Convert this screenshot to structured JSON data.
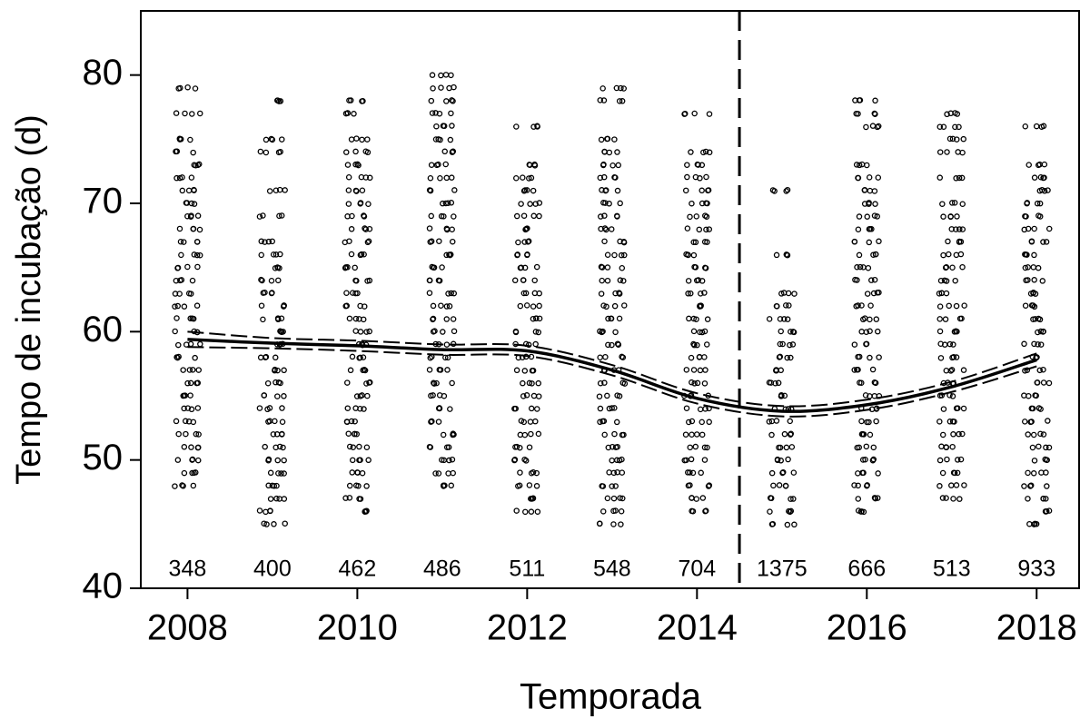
{
  "chart_data": {
    "type": "scatter",
    "x_label": "Temporada",
    "y_label": "Tempo de incubação (d)",
    "xlim": [
      2007.45,
      2018.5
    ],
    "ylim": [
      40,
      85
    ],
    "xticks": [
      2008,
      2010,
      2012,
      2014,
      2016,
      2018
    ],
    "yticks": [
      40,
      50,
      60,
      70,
      80
    ],
    "color": "#000000",
    "x": [
      2008,
      2009,
      2010,
      2011,
      2012,
      2013,
      2014,
      2015,
      2016,
      2017,
      2018
    ],
    "counts": [
      348,
      400,
      462,
      486,
      511,
      548,
      704,
      1375,
      666,
      513,
      933
    ],
    "values": [
      [
        48,
        49,
        50,
        51,
        52,
        53,
        54,
        55,
        56,
        57,
        58,
        59,
        60,
        61,
        62,
        63,
        64,
        65,
        66,
        67,
        68,
        69,
        70,
        71,
        72,
        73,
        74,
        75,
        77,
        79
      ],
      [
        45,
        46,
        47,
        48,
        49,
        50,
        51,
        52,
        53,
        54,
        55,
        56,
        57,
        58,
        59,
        60,
        61,
        62,
        63,
        64,
        65,
        66,
        67,
        69,
        71,
        74,
        75,
        78
      ],
      [
        46,
        47,
        48,
        49,
        50,
        51,
        52,
        53,
        54,
        55,
        56,
        57,
        58,
        59,
        60,
        61,
        62,
        63,
        64,
        65,
        66,
        67,
        68,
        69,
        70,
        71,
        72,
        73,
        74,
        75,
        77,
        78
      ],
      [
        48,
        49,
        50,
        51,
        52,
        53,
        54,
        55,
        56,
        57,
        58,
        59,
        60,
        61,
        62,
        63,
        64,
        65,
        66,
        67,
        68,
        69,
        70,
        71,
        72,
        73,
        74,
        75,
        76,
        77,
        78,
        79,
        80
      ],
      [
        46,
        47,
        48,
        49,
        50,
        51,
        52,
        53,
        54,
        55,
        56,
        57,
        58,
        59,
        60,
        61,
        62,
        63,
        64,
        65,
        66,
        67,
        68,
        69,
        70,
        71,
        72,
        73,
        76
      ],
      [
        45,
        46,
        47,
        48,
        49,
        50,
        51,
        52,
        53,
        54,
        55,
        56,
        57,
        58,
        59,
        60,
        61,
        62,
        63,
        64,
        65,
        66,
        67,
        68,
        69,
        70,
        71,
        72,
        73,
        74,
        75,
        78,
        79
      ],
      [
        46,
        47,
        48,
        49,
        50,
        51,
        52,
        53,
        54,
        55,
        56,
        57,
        58,
        59,
        60,
        61,
        62,
        63,
        64,
        65,
        66,
        67,
        68,
        69,
        70,
        71,
        72,
        73,
        74,
        77
      ],
      [
        45,
        46,
        47,
        48,
        49,
        50,
        51,
        52,
        53,
        54,
        55,
        56,
        57,
        58,
        59,
        60,
        61,
        62,
        63,
        66,
        71
      ],
      [
        46,
        47,
        48,
        49,
        50,
        51,
        52,
        53,
        54,
        55,
        56,
        57,
        58,
        59,
        60,
        61,
        62,
        63,
        64,
        65,
        66,
        67,
        68,
        69,
        70,
        71,
        72,
        73,
        76,
        77,
        78
      ],
      [
        47,
        48,
        49,
        50,
        51,
        52,
        53,
        54,
        55,
        56,
        57,
        58,
        59,
        60,
        61,
        62,
        63,
        64,
        65,
        66,
        67,
        68,
        69,
        70,
        72,
        74,
        75,
        76,
        77
      ],
      [
        45,
        46,
        47,
        48,
        49,
        50,
        51,
        52,
        53,
        54,
        55,
        56,
        57,
        58,
        59,
        60,
        61,
        62,
        63,
        64,
        65,
        66,
        67,
        68,
        69,
        70,
        71,
        72,
        73,
        76
      ]
    ],
    "fit": {
      "x": [
        2008,
        2009,
        2010,
        2011,
        2012,
        2013,
        2014,
        2015,
        2016,
        2017,
        2018
      ],
      "values": [
        59.4,
        59.1,
        58.9,
        58.6,
        58.5,
        57.0,
        54.8,
        53.8,
        54.3,
        55.7,
        57.8
      ],
      "lower": [
        58.8,
        58.7,
        58.5,
        58.2,
        58.1,
        56.6,
        54.4,
        53.4,
        53.9,
        55.3,
        57.3
      ],
      "upper": [
        60.0,
        59.5,
        59.3,
        59.0,
        58.9,
        57.4,
        55.2,
        54.2,
        54.7,
        56.1,
        58.3
      ]
    },
    "vline": 2014.5
  }
}
